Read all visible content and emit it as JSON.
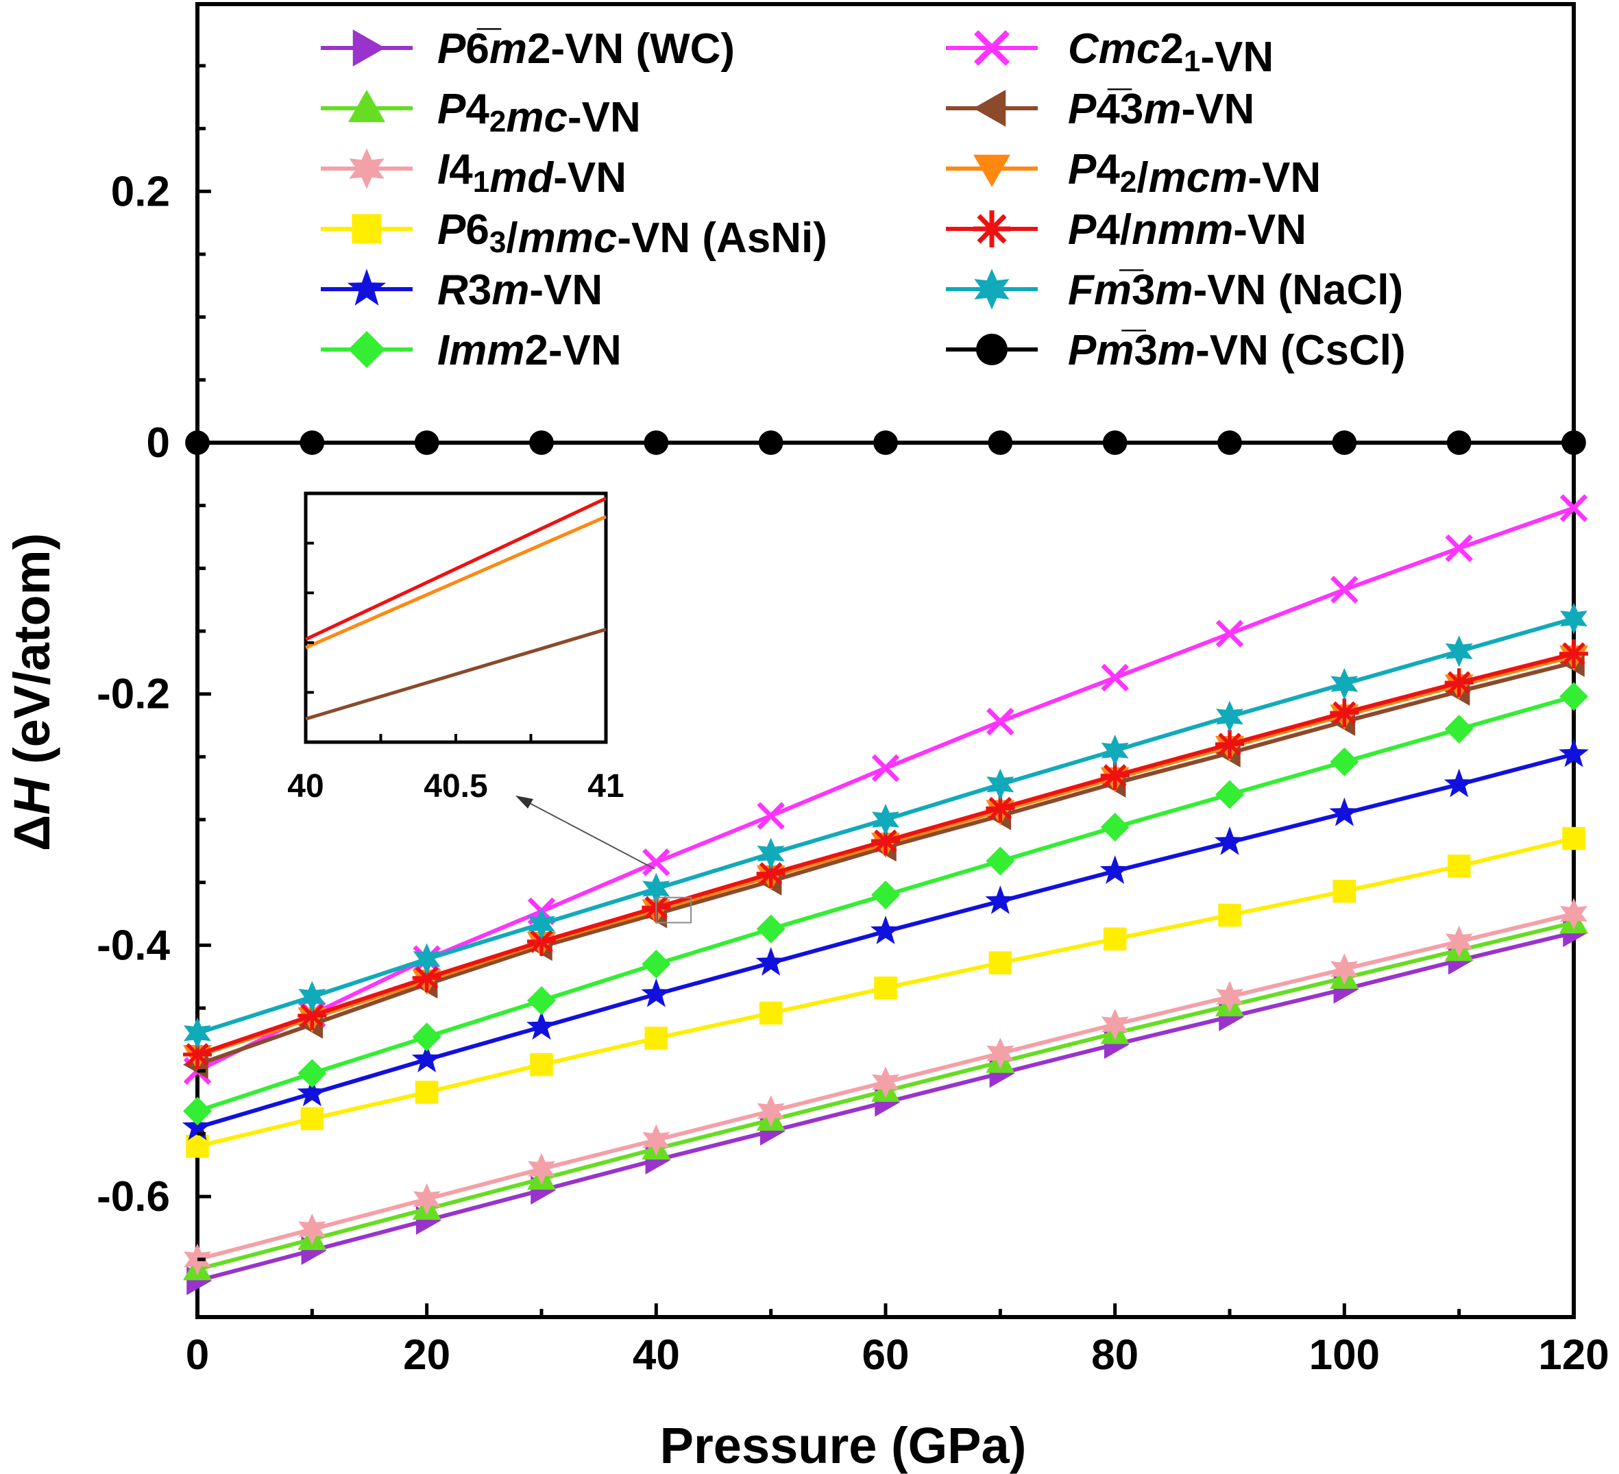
{
  "chart_data": {
    "type": "line",
    "xlabel": "Pressure (GPa)",
    "ylabel": "ΔH (eV/atom)",
    "xlim": [
      0,
      120
    ],
    "ylim": [
      -0.7,
      0.35
    ],
    "x": [
      0,
      10,
      20,
      30,
      40,
      50,
      60,
      70,
      80,
      90,
      100,
      110,
      120
    ],
    "x_ticks": [
      "0",
      "20",
      "40",
      "60",
      "80",
      "100",
      "120"
    ],
    "y_ticks": [
      "0.2",
      "0",
      "-0.2",
      "-0.4",
      "-0.6"
    ],
    "series": [
      {
        "name": "P6m2-VN (WC)",
        "parts": [
          [
            "i",
            "P"
          ],
          [
            "n",
            "6"
          ],
          [
            "o",
            "̅"
          ],
          [
            "i",
            "m"
          ],
          [
            "n",
            "2-VN (WC)"
          ]
        ],
        "color": "#9933cc",
        "marker": "triangle-right",
        "values": [
          -0.667,
          -0.643,
          -0.619,
          -0.595,
          -0.571,
          -0.548,
          -0.525,
          -0.502,
          -0.479,
          -0.457,
          -0.435,
          -0.412,
          -0.39
        ]
      },
      {
        "name": "P42mc-VN",
        "parts": [
          [
            "i",
            "P"
          ],
          [
            "n",
            "4"
          ],
          [
            "s",
            "2"
          ],
          [
            "i",
            "mc"
          ],
          [
            "n",
            "-VN"
          ]
        ],
        "color": "#66dd22",
        "marker": "triangle-up",
        "values": [
          -0.658,
          -0.634,
          -0.61,
          -0.586,
          -0.562,
          -0.539,
          -0.516,
          -0.493,
          -0.47,
          -0.448,
          -0.426,
          -0.404,
          -0.382
        ]
      },
      {
        "name": "I41md-VN",
        "parts": [
          [
            "i",
            "I"
          ],
          [
            "n",
            "4"
          ],
          [
            "s",
            "1"
          ],
          [
            "i",
            "md"
          ],
          [
            "n",
            "-VN"
          ]
        ],
        "color": "#f4a0a8",
        "marker": "star6",
        "values": [
          -0.65,
          -0.626,
          -0.602,
          -0.578,
          -0.555,
          -0.532,
          -0.509,
          -0.486,
          -0.463,
          -0.441,
          -0.419,
          -0.397,
          -0.375
        ]
      },
      {
        "name": "P63/mmc-VN (AsNi)",
        "parts": [
          [
            "i",
            "P"
          ],
          [
            "n",
            "6"
          ],
          [
            "s",
            "3"
          ],
          [
            "n",
            "/"
          ],
          [
            "i",
            "mmc"
          ],
          [
            "n",
            "-VN (AsNi)"
          ]
        ],
        "color": "#ffee00",
        "marker": "square",
        "values": [
          -0.56,
          -0.538,
          -0.517,
          -0.495,
          -0.474,
          -0.454,
          -0.434,
          -0.414,
          -0.395,
          -0.376,
          -0.357,
          -0.337,
          -0.315
        ]
      },
      {
        "name": "R3m-VN",
        "parts": [
          [
            "i",
            "R"
          ],
          [
            "n",
            "3"
          ],
          [
            "i",
            "m"
          ],
          [
            "n",
            "-VN"
          ]
        ],
        "color": "#1111dd",
        "marker": "star5",
        "values": [
          -0.545,
          -0.518,
          -0.491,
          -0.465,
          -0.439,
          -0.414,
          -0.389,
          -0.365,
          -0.341,
          -0.318,
          -0.295,
          -0.272,
          -0.248
        ]
      },
      {
        "name": "Imm2-VN",
        "parts": [
          [
            "i",
            "Imm"
          ],
          [
            "n",
            "2-VN"
          ]
        ],
        "color": "#33ee33",
        "marker": "diamond",
        "values": [
          -0.532,
          -0.502,
          -0.473,
          -0.444,
          -0.415,
          -0.387,
          -0.36,
          -0.333,
          -0.306,
          -0.28,
          -0.254,
          -0.228,
          -0.202
        ]
      },
      {
        "name": "Cmc21-VN",
        "parts": [
          [
            "i",
            "Cmc"
          ],
          [
            "n",
            "2"
          ],
          [
            "s",
            "1"
          ],
          [
            "n",
            "-VN"
          ]
        ],
        "color": "#ff33ff",
        "marker": "cross-x",
        "values": [
          -0.5,
          -0.455,
          -0.411,
          -0.373,
          -0.334,
          -0.297,
          -0.259,
          -0.222,
          -0.187,
          -0.152,
          -0.117,
          -0.084,
          -0.052
        ]
      },
      {
        "name": "P43m-VN",
        "parts": [
          [
            "i",
            "P"
          ],
          [
            "n",
            "4"
          ],
          [
            "o",
            "̅"
          ],
          [
            "n",
            "3"
          ],
          [
            "i",
            "m"
          ],
          [
            "n",
            "-VN"
          ]
        ],
        "color": "#8b4a2b",
        "marker": "triangle-left",
        "values": [
          -0.495,
          -0.463,
          -0.431,
          -0.401,
          -0.375,
          -0.349,
          -0.322,
          -0.297,
          -0.271,
          -0.247,
          -0.222,
          -0.198,
          -0.175
        ]
      },
      {
        "name": "P42/mcm-VN",
        "parts": [
          [
            "i",
            "P"
          ],
          [
            "n",
            "4"
          ],
          [
            "s",
            "2"
          ],
          [
            "n",
            "/"
          ],
          [
            "i",
            "mcm"
          ],
          [
            "n",
            "-VN"
          ]
        ],
        "color": "#ff8811",
        "marker": "triangle-down",
        "values": [
          -0.488,
          -0.458,
          -0.428,
          -0.398,
          -0.372,
          -0.345,
          -0.319,
          -0.293,
          -0.267,
          -0.242,
          -0.217,
          -0.193,
          -0.17
        ]
      },
      {
        "name": "P4/nmm-VN",
        "parts": [
          [
            "i",
            "P"
          ],
          [
            "n",
            "4/"
          ],
          [
            "i",
            "nmm"
          ],
          [
            "n",
            "-VN"
          ]
        ],
        "color": "#ee1111",
        "marker": "asterisk",
        "values": [
          -0.487,
          -0.456,
          -0.426,
          -0.397,
          -0.37,
          -0.343,
          -0.317,
          -0.291,
          -0.265,
          -0.24,
          -0.215,
          -0.191,
          -0.168
        ]
      },
      {
        "name": "Fm3m-VN (NaCl)",
        "parts": [
          [
            "i",
            "Fm"
          ],
          [
            "o",
            "̅"
          ],
          [
            "n",
            "3"
          ],
          [
            "i",
            "m"
          ],
          [
            "n",
            "-VN (NaCl)"
          ]
        ],
        "color": "#11aabb",
        "marker": "star6",
        "values": [
          -0.47,
          -0.441,
          -0.411,
          -0.383,
          -0.355,
          -0.327,
          -0.3,
          -0.272,
          -0.245,
          -0.218,
          -0.192,
          -0.166,
          -0.14
        ]
      },
      {
        "name": "Pm3m-VN (CsCl)",
        "parts": [
          [
            "i",
            "Pm"
          ],
          [
            "o",
            "̅"
          ],
          [
            "n",
            "3"
          ],
          [
            "i",
            "m"
          ],
          [
            "n",
            "-VN (CsCl)"
          ]
        ],
        "color": "#000000",
        "marker": "circle",
        "values": [
          0,
          0,
          0,
          0,
          0,
          0,
          0,
          0,
          0,
          0,
          0,
          0,
          0
        ]
      }
    ],
    "inset": {
      "xlim": [
        40,
        41
      ],
      "x_ticks": [
        "40",
        "40.5",
        "41"
      ],
      "lines": [
        {
          "name": "P4/nmm-VN",
          "color": "#ee1111",
          "start": 0.12,
          "end": 0.97
        },
        {
          "name": "P42/mcm-VN",
          "color": "#ff8811",
          "start": 0.07,
          "end": 0.86
        },
        {
          "name": "P43m-VN",
          "color": "#8b4a2b",
          "start": -0.36,
          "end": 0.18
        }
      ]
    }
  }
}
